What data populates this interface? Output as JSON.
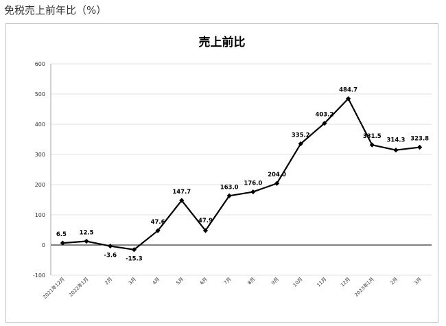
{
  "page_heading": "免税売上前年比（%）",
  "chart_data": {
    "type": "line",
    "title": "売上前比",
    "xlabel": "",
    "ylabel": "",
    "categories": [
      "2021年12月",
      "2022年1月",
      "2月",
      "3月",
      "4月",
      "5月",
      "6月",
      "7月",
      "8月",
      "9月",
      "10月",
      "11月",
      "12月",
      "2023年1月",
      "2月",
      "3月"
    ],
    "series": [
      {
        "values": [
          6.5,
          12.5,
          -3.6,
          -15.3,
          47.6,
          147.7,
          47.9,
          163.0,
          176.0,
          204.0,
          335.2,
          403.2,
          484.7,
          331.5,
          314.3,
          323.8
        ],
        "data_labels": [
          "6.5",
          "12.5",
          "-3.6",
          "-15.3",
          "47.6",
          "147.7",
          "47.9",
          "163.0",
          "176.0",
          "204.0",
          "335.2",
          "403.2",
          "484.7",
          "331.5",
          "314.3",
          "323.8"
        ]
      }
    ],
    "ylim": [
      -100,
      600
    ],
    "yticks": [
      -100,
      0,
      100,
      200,
      300,
      400,
      500,
      600
    ],
    "grid": true,
    "legend": "none",
    "line_color": "#000000",
    "grid_color": "#d9d9d9",
    "zero_line_color": "#000000",
    "marker": "diamond"
  }
}
